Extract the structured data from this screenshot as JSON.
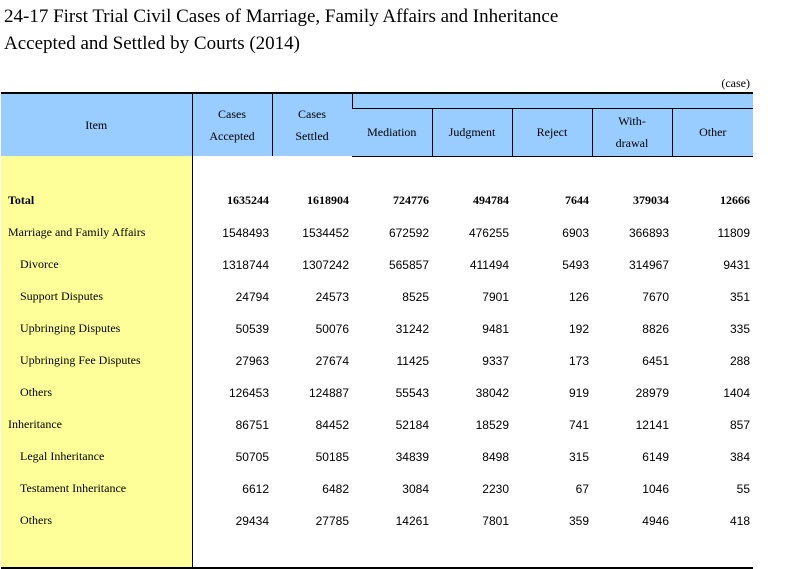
{
  "title": {
    "line1": "24-17  First Trial Civil Cases of Marriage, Family Affairs and Inheritance",
    "line2": "Accepted and Settled by Courts (2014)"
  },
  "unit": "(case)",
  "headers": {
    "item": "Item",
    "accepted_1": "Cases",
    "accepted_2": "Accepted",
    "settled_1": "Cases",
    "settled_2": "Settled",
    "mediation": "Mediation",
    "judgment": "Judgment",
    "reject": "Reject",
    "withdrawal_1": "With-",
    "withdrawal_2": "drawal",
    "other": "Other"
  },
  "rows": [
    {
      "item": "Total",
      "accepted": "1635244",
      "settled": "1618904",
      "mediation": "724776",
      "judgment": "494784",
      "reject": "7644",
      "withdrawal": "379034",
      "other": "12666"
    },
    {
      "item": "Marriage and Family Affairs",
      "accepted": "1548493",
      "settled": "1534452",
      "mediation": "672592",
      "judgment": "476255",
      "reject": "6903",
      "withdrawal": "366893",
      "other": "11809"
    },
    {
      "item": "Divorce",
      "accepted": "1318744",
      "settled": "1307242",
      "mediation": "565857",
      "judgment": "411494",
      "reject": "5493",
      "withdrawal": "314967",
      "other": "9431"
    },
    {
      "item": "Support Disputes",
      "accepted": "24794",
      "settled": "24573",
      "mediation": "8525",
      "judgment": "7901",
      "reject": "126",
      "withdrawal": "7670",
      "other": "351"
    },
    {
      "item": "Upbringing Disputes",
      "accepted": "50539",
      "settled": "50076",
      "mediation": "31242",
      "judgment": "9481",
      "reject": "192",
      "withdrawal": "8826",
      "other": "335"
    },
    {
      "item": "Upbringing Fee Disputes",
      "accepted": "27963",
      "settled": "27674",
      "mediation": "11425",
      "judgment": "9337",
      "reject": "173",
      "withdrawal": "6451",
      "other": "288"
    },
    {
      "item": "Others",
      "accepted": "126453",
      "settled": "124887",
      "mediation": "55543",
      "judgment": "38042",
      "reject": "919",
      "withdrawal": "28979",
      "other": "1404"
    },
    {
      "item": "Inheritance",
      "accepted": "86751",
      "settled": "84452",
      "mediation": "52184",
      "judgment": "18529",
      "reject": "741",
      "withdrawal": "12141",
      "other": "857"
    },
    {
      "item": "Legal Inheritance",
      "accepted": "50705",
      "settled": "50185",
      "mediation": "34839",
      "judgment": "8498",
      "reject": "315",
      "withdrawal": "6149",
      "other": "384"
    },
    {
      "item": "Testament Inheritance",
      "accepted": "6612",
      "settled": "6482",
      "mediation": "3084",
      "judgment": "2230",
      "reject": "67",
      "withdrawal": "1046",
      "other": "55"
    },
    {
      "item": "Others",
      "accepted": "29434",
      "settled": "27785",
      "mediation": "14261",
      "judgment": "7801",
      "reject": "359",
      "withdrawal": "4946",
      "other": "418"
    }
  ],
  "colors": {
    "header_bg": "#99ccff",
    "item_column_bg": "#ffff99"
  }
}
